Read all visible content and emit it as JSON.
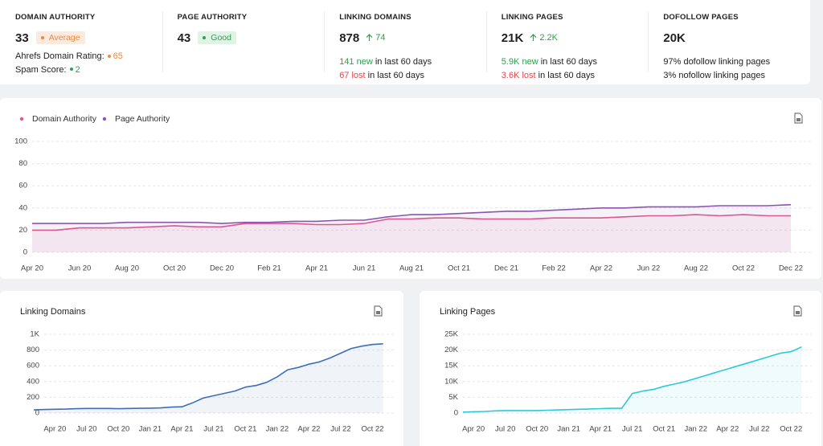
{
  "stats": [
    {
      "title": "DOMAIN AUTHORITY",
      "value": "33",
      "badge": {
        "text": "Average",
        "color": "#f0883e",
        "background": "#fdeadf"
      },
      "lines": [
        [
          {
            "text": "Ahrefs Domain Rating:"
          },
          {
            "text": "65",
            "color": "#f0883e",
            "dot": true
          }
        ],
        [
          {
            "text": "Spam Score:"
          },
          {
            "text": "2",
            "color": "#2e9e4f",
            "dot": true
          }
        ]
      ]
    },
    {
      "title": "PAGE AUTHORITY",
      "value": "43",
      "badge": {
        "text": "Good",
        "color": "#2e9e4f",
        "background": "#e0f4e5"
      }
    },
    {
      "title": "LINKING DOMAINS",
      "value": "878",
      "change": {
        "text": "74",
        "color": "#2e9e4f"
      },
      "lines": [
        [
          {
            "text": "141 new",
            "color": "#2e9e4f"
          },
          {
            "text": " in last 60 days"
          }
        ],
        [
          {
            "text": "67 lost",
            "color": "#e5484d"
          },
          {
            "text": " in last 60 days"
          }
        ]
      ]
    },
    {
      "title": "LINKING PAGES",
      "value": "21K",
      "change": {
        "text": "2.2K",
        "color": "#2e9e4f"
      },
      "lines": [
        [
          {
            "text": "5.9K new",
            "color": "#2e9e4f"
          },
          {
            "text": " in last 60 days"
          }
        ],
        [
          {
            "text": "3.6K lost",
            "color": "#e5484d"
          },
          {
            "text": " in last 60 days"
          }
        ]
      ]
    },
    {
      "title": "DOFOLLOW PAGES",
      "value": "20K",
      "lines": [
        [
          {
            "text": "97% dofollow linking pages"
          }
        ],
        [
          {
            "text": "3% nofollow linking pages"
          }
        ]
      ]
    }
  ],
  "chart_data": [
    {
      "type": "line",
      "area": true,
      "grid": true,
      "legend": "top-left",
      "categories": [
        "Apr 20",
        null,
        "Jun 20",
        null,
        "Aug 20",
        null,
        "Oct 20",
        null,
        "Dec 20",
        null,
        "Feb 21",
        null,
        "Apr 21",
        null,
        "Jun 21",
        null,
        "Aug 21",
        null,
        "Oct 21",
        null,
        "Dec 21",
        null,
        "Feb 22",
        null,
        "Apr 22",
        null,
        "Jun 22",
        null,
        "Aug 22",
        null,
        "Oct 22",
        null,
        "Dec 22"
      ],
      "series": [
        {
          "name": "Domain Authority",
          "color": "#e0588c",
          "values": [
            20,
            20,
            22,
            22,
            22,
            23,
            24,
            23,
            23,
            26,
            26,
            26,
            25,
            25,
            26,
            30,
            30,
            31,
            31,
            30,
            30,
            30,
            31,
            31,
            31,
            32,
            33,
            33,
            34,
            33,
            34,
            33,
            33
          ]
        },
        {
          "name": "Page Authority",
          "color": "#8a55b5",
          "values": [
            26,
            26,
            26,
            26,
            27,
            27,
            27,
            27,
            26,
            27,
            27,
            28,
            28,
            29,
            29,
            32,
            34,
            34,
            35,
            36,
            37,
            37,
            38,
            39,
            40,
            40,
            41,
            41,
            41,
            42,
            42,
            42,
            43
          ]
        }
      ],
      "ylim": [
        0,
        100
      ],
      "yticks": [
        0,
        20,
        40,
        60,
        80,
        100
      ]
    },
    {
      "type": "line",
      "area": true,
      "grid": true,
      "title": "Linking Domains",
      "categories": [
        null,
        null,
        "Apr 20",
        null,
        null,
        "Jul 20",
        null,
        null,
        "Oct 20",
        null,
        null,
        "Jan 21",
        null,
        null,
        "Apr 21",
        null,
        null,
        "Jul 21",
        null,
        null,
        "Oct 21",
        null,
        null,
        "Jan 22",
        null,
        null,
        "Apr 22",
        null,
        null,
        "Jul 22",
        null,
        null,
        "Oct 22",
        null
      ],
      "series": [
        {
          "color": "#3d6fb8",
          "values": [
            40,
            45,
            48,
            50,
            55,
            58,
            58,
            58,
            55,
            58,
            60,
            62,
            65,
            75,
            80,
            130,
            190,
            220,
            250,
            280,
            330,
            350,
            390,
            460,
            550,
            580,
            620,
            650,
            700,
            760,
            820,
            850,
            870,
            880
          ]
        }
      ],
      "ylim": [
        0,
        1000
      ],
      "yticks": [
        0,
        200,
        400,
        600,
        800,
        {
          "value": 1000,
          "label": "1K"
        }
      ]
    },
    {
      "type": "line",
      "area": true,
      "grid": true,
      "title": "Linking Pages",
      "categories": [
        null,
        "Apr 20",
        null,
        null,
        "Jul 20",
        null,
        null,
        "Oct 20",
        null,
        null,
        "Jan 21",
        null,
        null,
        "Apr 21",
        null,
        null,
        "Jul 21",
        null,
        null,
        "Oct 21",
        null,
        null,
        "Jan 22",
        null,
        null,
        "Apr 22",
        null,
        null,
        "Jul 22",
        null,
        null,
        "Oct 22",
        null
      ],
      "series": [
        {
          "color": "#2ec9d9",
          "values": [
            300,
            400,
            500,
            700,
            800,
            800,
            800,
            800,
            900,
            1000,
            1100,
            1200,
            1300,
            1400,
            1500,
            1500,
            6200,
            7000,
            7500,
            8500,
            9200,
            10000,
            11000,
            12000,
            13000,
            14000,
            15000,
            16000,
            17000,
            18000,
            19000,
            19500,
            21000
          ]
        }
      ],
      "ylim": [
        0,
        25000
      ],
      "yticks": [
        0,
        {
          "value": 5000,
          "label": "5K"
        },
        {
          "value": 10000,
          "label": "10K"
        },
        {
          "value": 15000,
          "label": "15K"
        },
        {
          "value": 20000,
          "label": "20K"
        },
        {
          "value": 25000,
          "label": "25K"
        }
      ]
    }
  ]
}
